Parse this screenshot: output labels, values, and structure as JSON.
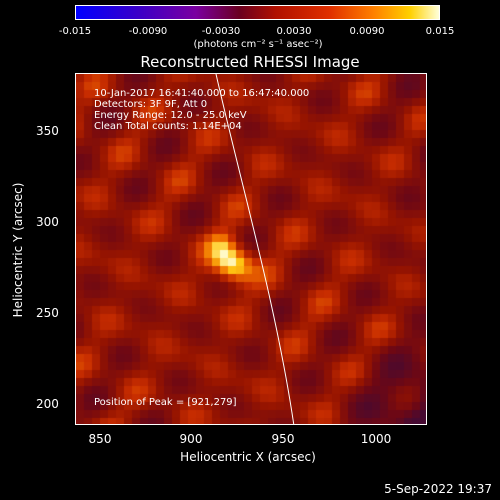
{
  "colorbar": {
    "ticks": [
      "-0.015",
      "-0.0090",
      "-0.0030",
      "0.0030",
      "0.0090",
      "0.015"
    ],
    "units_label": "(photons cm⁻² s⁻¹ asec⁻²)"
  },
  "title": "Reconstructed RHESSI Image",
  "annotations": {
    "time_range": "10-Jan-2017 16:41:40.000 to 16:47:40.000",
    "detectors": "Detectors: 3F 9F, Att 0",
    "energy_range": "Energy Range: 12.0 - 25.0 keV",
    "clean": "Clean     Total counts: 1.14E+04",
    "peak": "Position of Peak = [921,279]"
  },
  "axes": {
    "xlabel": "Heliocentric X (arcsec)",
    "ylabel": "Heliocentric Y (arcsec)",
    "xticks": [
      "850",
      "900",
      "950",
      "1000"
    ],
    "yticks": [
      "350",
      "300",
      "250",
      "200"
    ]
  },
  "footer": "5-Sep-2022 19:37",
  "colors": {
    "background": "#000000",
    "text": "#ffffff"
  }
}
